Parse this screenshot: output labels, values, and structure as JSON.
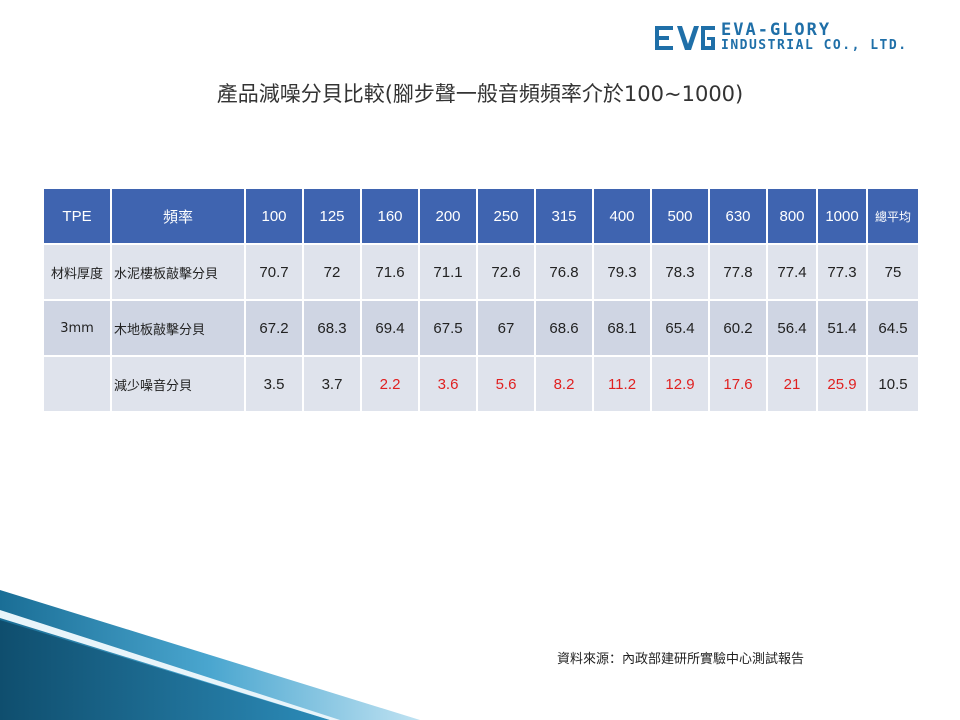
{
  "logo": {
    "mark": "EG",
    "line1": "EVA-GLORY",
    "line2": "INDUSTRIAL CO., LTD."
  },
  "title": "產品減噪分貝比較(腳步聲一般音頻頻率介於100~1000)",
  "table": {
    "header": [
      "TPE",
      "頻率",
      "100",
      "125",
      "160",
      "200",
      "250",
      "315",
      "400",
      "500",
      "630",
      "800",
      "1000",
      "總平均"
    ],
    "rows": [
      {
        "group": "材料厚度",
        "label": "水泥樓板敲擊分貝",
        "values": [
          "70.7",
          "72",
          "71.6",
          "71.1",
          "72.6",
          "76.8",
          "79.3",
          "78.3",
          "77.8",
          "77.4",
          "77.3",
          "75"
        ],
        "red": []
      },
      {
        "group": "3mm",
        "label": "木地板敲擊分貝",
        "values": [
          "67.2",
          "68.3",
          "69.4",
          "67.5",
          "67",
          "68.6",
          "68.1",
          "65.4",
          "60.2",
          "56.4",
          "51.4",
          "64.5"
        ],
        "red": []
      },
      {
        "group": "",
        "label": "減少噪音分貝",
        "values": [
          "3.5",
          "3.7",
          "2.2",
          "3.6",
          "5.6",
          "8.2",
          "11.2",
          "12.9",
          "17.6",
          "21",
          "25.9",
          "10.5"
        ],
        "red": [
          2,
          3,
          4,
          5,
          6,
          7,
          8,
          9,
          10
        ]
      }
    ]
  },
  "source": "資料來源：內政部建研所實驗中心測試報告",
  "colors": {
    "header_bg": "#3f64b0",
    "cell_bg": "#dfe3ec",
    "cell_alt_bg": "#cfd5e3",
    "highlight_red": "#e02020",
    "logo_blue": "#1f6fa8"
  }
}
